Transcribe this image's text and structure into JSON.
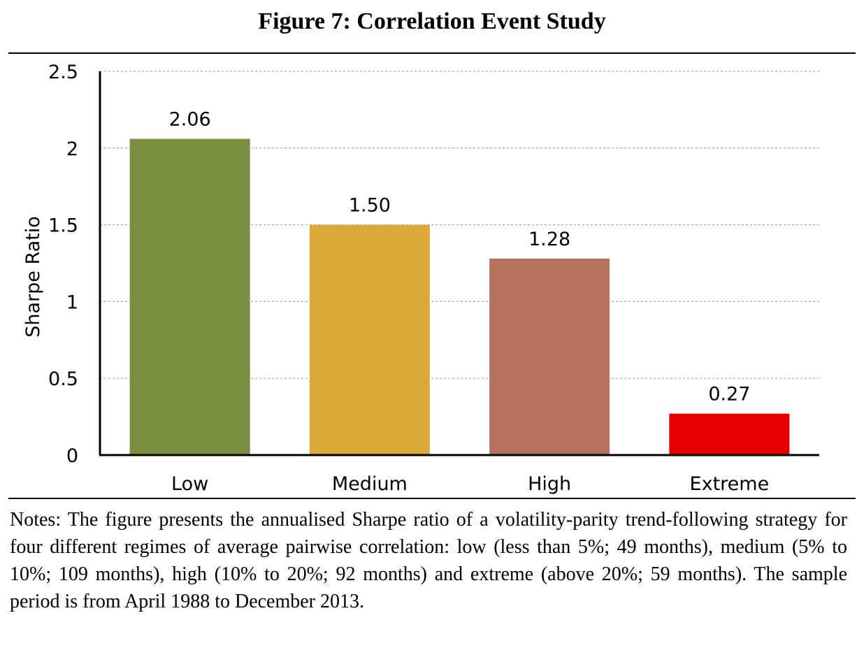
{
  "figure": {
    "title": "Figure 7: Correlation Event Study",
    "notes": "Notes: The figure presents the annualised Sharpe ratio of a volatility-parity trend-following strategy for four different regimes of average pairwise correlation: low (less than 5%; 49 months), medium (5% to 10%; 109 months), high (10% to 20%; 92 months) and extreme (above 20%; 59 months). The sample period is from April 1988 to December 2013."
  },
  "chart_data": {
    "type": "bar",
    "title": "",
    "xlabel": "",
    "ylabel": "Sharpe Ratio",
    "categories": [
      "Low",
      "Medium",
      "High",
      "Extreme"
    ],
    "values": [
      2.06,
      1.5,
      1.28,
      0.27
    ],
    "data_labels": [
      "2.06",
      "1.50",
      "1.28",
      "0.27"
    ],
    "colors": [
      "#7b8f43",
      "#dba937",
      "#b6735b",
      "#e60000"
    ],
    "ylim": [
      0,
      2.5
    ],
    "yticks": [
      0,
      0.5,
      1,
      1.5,
      2,
      2.5
    ],
    "ytick_labels": [
      "0",
      "0.5",
      "1",
      "1.5",
      "2",
      "2.5"
    ],
    "grid": "horizontal dashed",
    "legend": "none"
  }
}
